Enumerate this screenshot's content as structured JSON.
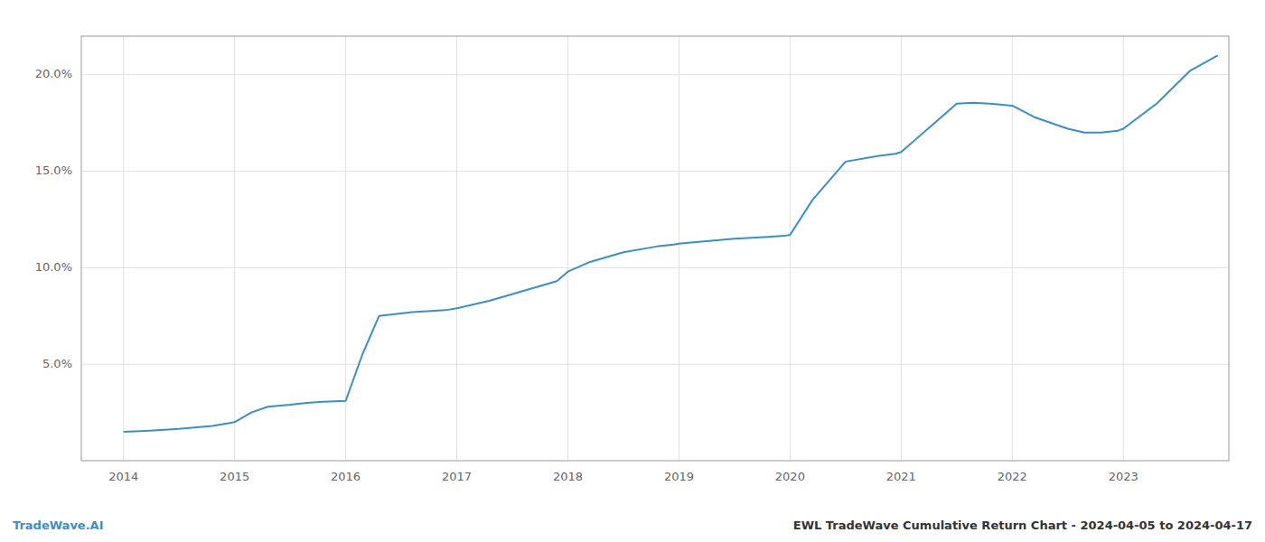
{
  "chart_data": {
    "type": "line",
    "annotations": [
      "TradeWave.AI",
      "EWL TradeWave Cumulative Return Chart - 2024-04-05 to 2024-04-17"
    ],
    "color": "#3a8fc7",
    "grid": true,
    "x": [
      2014.0,
      2014.2,
      2014.5,
      2014.8,
      2015.0,
      2015.15,
      2015.3,
      2015.5,
      2015.65,
      2015.8,
      2016.0,
      2016.15,
      2016.3,
      2016.6,
      2016.9,
      2017.0,
      2017.3,
      2017.6,
      2017.9,
      2018.0,
      2018.2,
      2018.5,
      2018.8,
      2018.95,
      2019.0,
      2019.2,
      2019.5,
      2019.8,
      2019.95,
      2020.0,
      2020.2,
      2020.5,
      2020.8,
      2020.95,
      2021.0,
      2021.3,
      2021.5,
      2021.65,
      2021.8,
      2022.0,
      2022.2,
      2022.5,
      2022.65,
      2022.8,
      2022.95,
      2023.0,
      2023.3,
      2023.6,
      2023.85
    ],
    "values": [
      1.5,
      1.55,
      1.65,
      1.8,
      2.0,
      2.5,
      2.8,
      2.9,
      3.0,
      3.05,
      3.1,
      5.5,
      7.5,
      7.7,
      7.8,
      7.9,
      8.3,
      8.8,
      9.3,
      9.8,
      10.3,
      10.8,
      11.1,
      11.2,
      11.25,
      11.35,
      11.5,
      11.6,
      11.65,
      11.7,
      13.5,
      15.5,
      15.8,
      15.9,
      16.0,
      17.5,
      18.5,
      18.55,
      18.5,
      18.4,
      17.8,
      17.2,
      17.0,
      17.0,
      17.1,
      17.2,
      18.5,
      20.2,
      21.0
    ],
    "xlim": [
      2013.62,
      2023.95
    ],
    "xticks": [
      2014,
      2015,
      2016,
      2017,
      2018,
      2019,
      2020,
      2021,
      2022,
      2023
    ],
    "ylim": [
      0,
      22
    ],
    "yticks": [
      {
        "value": 5.0,
        "label": "5.0%"
      },
      {
        "value": 10.0,
        "label": "10.0%"
      },
      {
        "value": 15.0,
        "label": "15.0%"
      },
      {
        "value": 20.0,
        "label": "20.0%"
      }
    ]
  }
}
